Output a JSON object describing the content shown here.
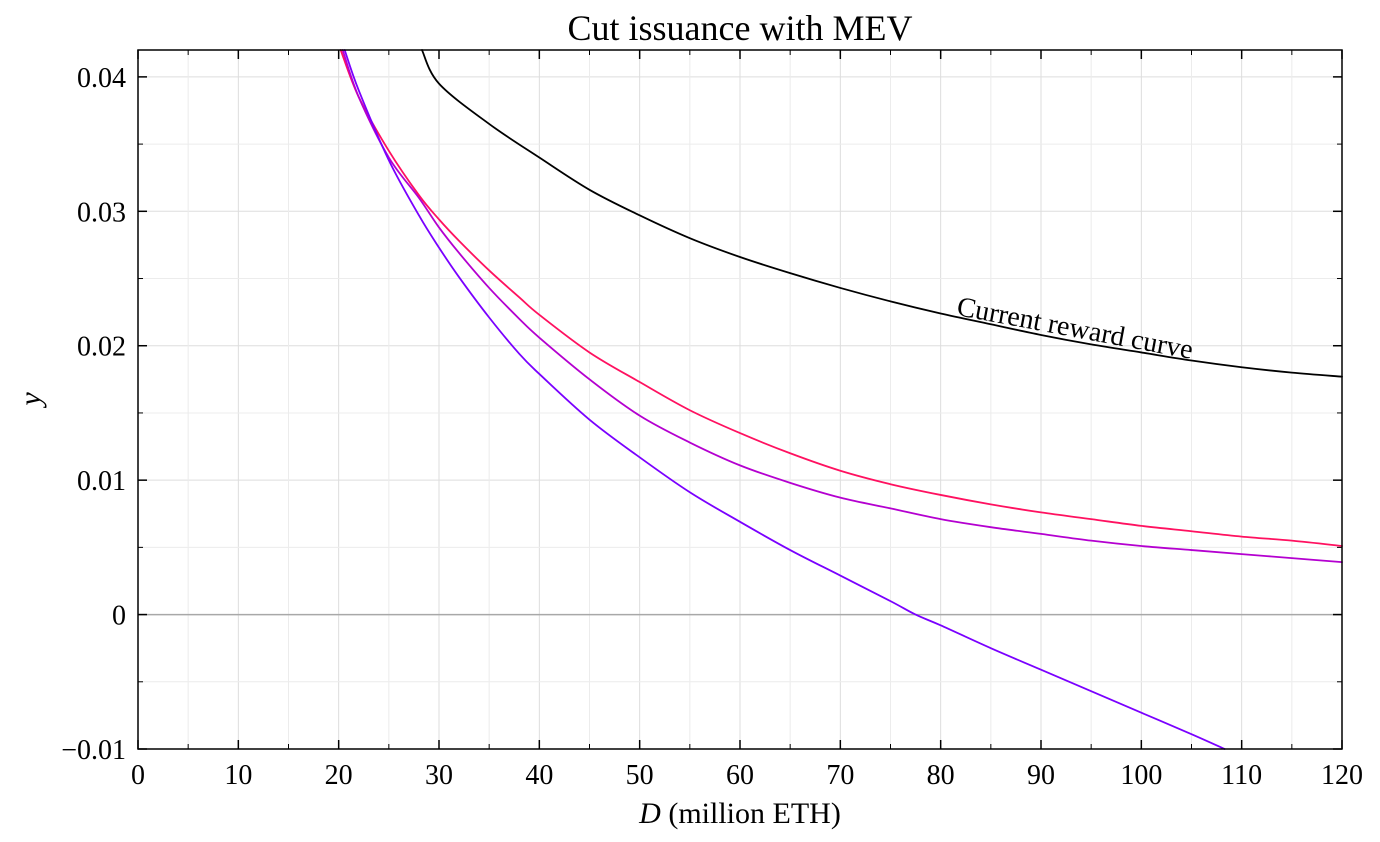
{
  "chart_data": {
    "type": "line",
    "title": "Cut issuance with MEV",
    "xlabel_symbol": "D",
    "xlabel_rest": " (million ETH)",
    "ylabel": "y",
    "xlim": [
      0,
      120
    ],
    "ylim": [
      -0.01,
      0.042
    ],
    "x_ticks": [
      0,
      10,
      20,
      30,
      40,
      50,
      60,
      70,
      80,
      90,
      100,
      110,
      120
    ],
    "x_tick_labels": [
      "0",
      "10",
      "20",
      "30",
      "40",
      "50",
      "60",
      "70",
      "80",
      "90",
      "100",
      "110",
      "120"
    ],
    "y_ticks": [
      -0.01,
      0,
      0.01,
      0.02,
      0.03,
      0.04
    ],
    "y_tick_labels": [
      "−0.01",
      "0",
      "0.01",
      "0.02",
      "0.03",
      "0.04"
    ],
    "grid": true,
    "zero_line": 0,
    "annotation": {
      "text": "Current reward curve",
      "x": 81.5,
      "y": 0.0223
    },
    "series": [
      {
        "color": "#000000",
        "x": [
          28.3,
          30,
          35,
          40,
          45,
          50,
          55,
          60,
          65,
          70,
          75,
          80,
          85,
          90,
          95,
          100,
          105,
          110,
          115,
          120
        ],
        "y": [
          0.042,
          0.0395,
          0.0365,
          0.034,
          0.0316,
          0.0297,
          0.028,
          0.0266,
          0.0254,
          0.0243,
          0.0233,
          0.0224,
          0.0216,
          0.0208,
          0.0201,
          0.0195,
          0.0189,
          0.0184,
          0.018,
          0.0177
        ]
      },
      {
        "color": "#ff1160",
        "x": [
          20.2,
          22,
          25,
          28,
          30,
          32,
          35,
          38,
          40,
          45,
          50,
          55,
          60,
          65,
          70,
          75,
          80,
          85,
          90,
          95,
          100,
          105,
          110,
          115,
          120
        ],
        "y": [
          0.042,
          0.0385,
          0.0345,
          0.0312,
          0.0294,
          0.0278,
          0.0256,
          0.0236,
          0.0223,
          0.0195,
          0.0173,
          0.0152,
          0.0135,
          0.012,
          0.0107,
          0.0097,
          0.0089,
          0.0082,
          0.0076,
          0.0071,
          0.0066,
          0.0062,
          0.0058,
          0.0055,
          0.0051
        ]
      },
      {
        "color": "#b400d0",
        "x": [
          20.4,
          22,
          25,
          28,
          30,
          32,
          35,
          38,
          40,
          45,
          50,
          55,
          60,
          65,
          70,
          75,
          80,
          85,
          90,
          95,
          100,
          105,
          110,
          115,
          120
        ],
        "y": [
          0.042,
          0.0385,
          0.034,
          0.031,
          0.0288,
          0.0269,
          0.0243,
          0.022,
          0.0206,
          0.0175,
          0.0148,
          0.0128,
          0.0111,
          0.0098,
          0.0087,
          0.0079,
          0.0071,
          0.0065,
          0.006,
          0.0055,
          0.0051,
          0.0048,
          0.0045,
          0.0042,
          0.0039
        ]
      },
      {
        "color": "#7a00ff",
        "x": [
          20.6,
          22,
          25,
          28,
          30,
          32,
          35,
          38,
          40,
          45,
          50,
          55,
          60,
          65,
          70,
          75,
          77.5,
          80,
          85,
          90,
          95,
          100,
          105,
          108.3
        ],
        "y": [
          0.042,
          0.039,
          0.0338,
          0.0297,
          0.0273,
          0.0251,
          0.0221,
          0.0194,
          0.0179,
          0.0145,
          0.0117,
          0.0091,
          0.0069,
          0.0048,
          0.0029,
          0.001,
          0.0,
          -0.0008,
          -0.0025,
          -0.0041,
          -0.0057,
          -0.0073,
          -0.0089,
          -0.01
        ]
      }
    ]
  }
}
